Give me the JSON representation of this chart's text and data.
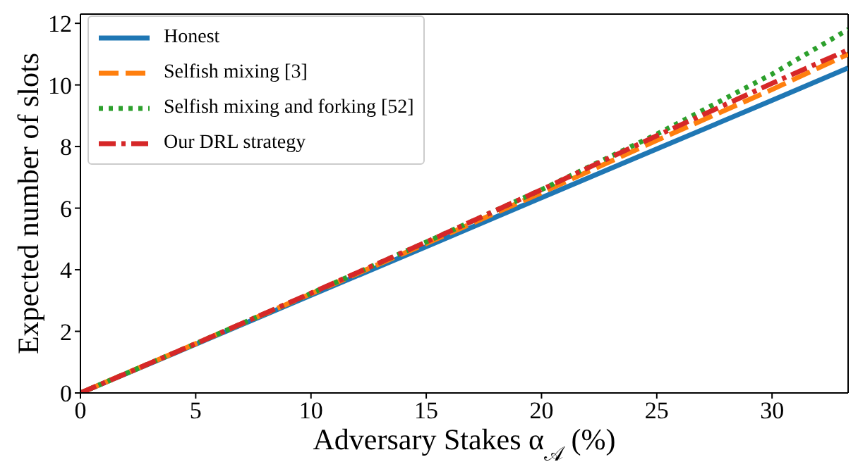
{
  "chart_data": {
    "type": "line",
    "xlabel": "Adversary Stakes α$_{𝒜}$ (%)",
    "ylabel": "Expected number of slots",
    "x": [
      0,
      5,
      10,
      15,
      20,
      25,
      30,
      33.3
    ],
    "series": [
      {
        "name": "Honest",
        "color": "#1f77b4",
        "line_style": "solid",
        "values": [
          0,
          1.58,
          3.17,
          4.75,
          6.34,
          7.92,
          9.5,
          10.55
        ]
      },
      {
        "name": "Selfish mixing [3]",
        "color": "#ff7f0e",
        "line_style": "dashed",
        "values": [
          0,
          1.6,
          3.22,
          4.85,
          6.5,
          8.2,
          9.85,
          11.0
        ]
      },
      {
        "name": "Selfish mixing and forking [52]",
        "color": "#2ca02c",
        "line_style": "dotted",
        "values": [
          0,
          1.6,
          3.23,
          4.9,
          6.6,
          8.4,
          10.35,
          11.8
        ]
      },
      {
        "name": "Our DRL strategy",
        "color": "#d62728",
        "line_style": "dashdot",
        "values": [
          0,
          1.6,
          3.24,
          4.9,
          6.6,
          8.35,
          10.05,
          11.14
        ]
      }
    ],
    "xlim": [
      0,
      33.3
    ],
    "ylim": [
      0,
      12.3
    ],
    "xticks": [
      0,
      5,
      10,
      15,
      20,
      25,
      30
    ],
    "yticks": [
      0,
      2,
      4,
      6,
      8,
      10,
      12
    ],
    "grid": false,
    "legend": "top left",
    "marker": "none"
  }
}
